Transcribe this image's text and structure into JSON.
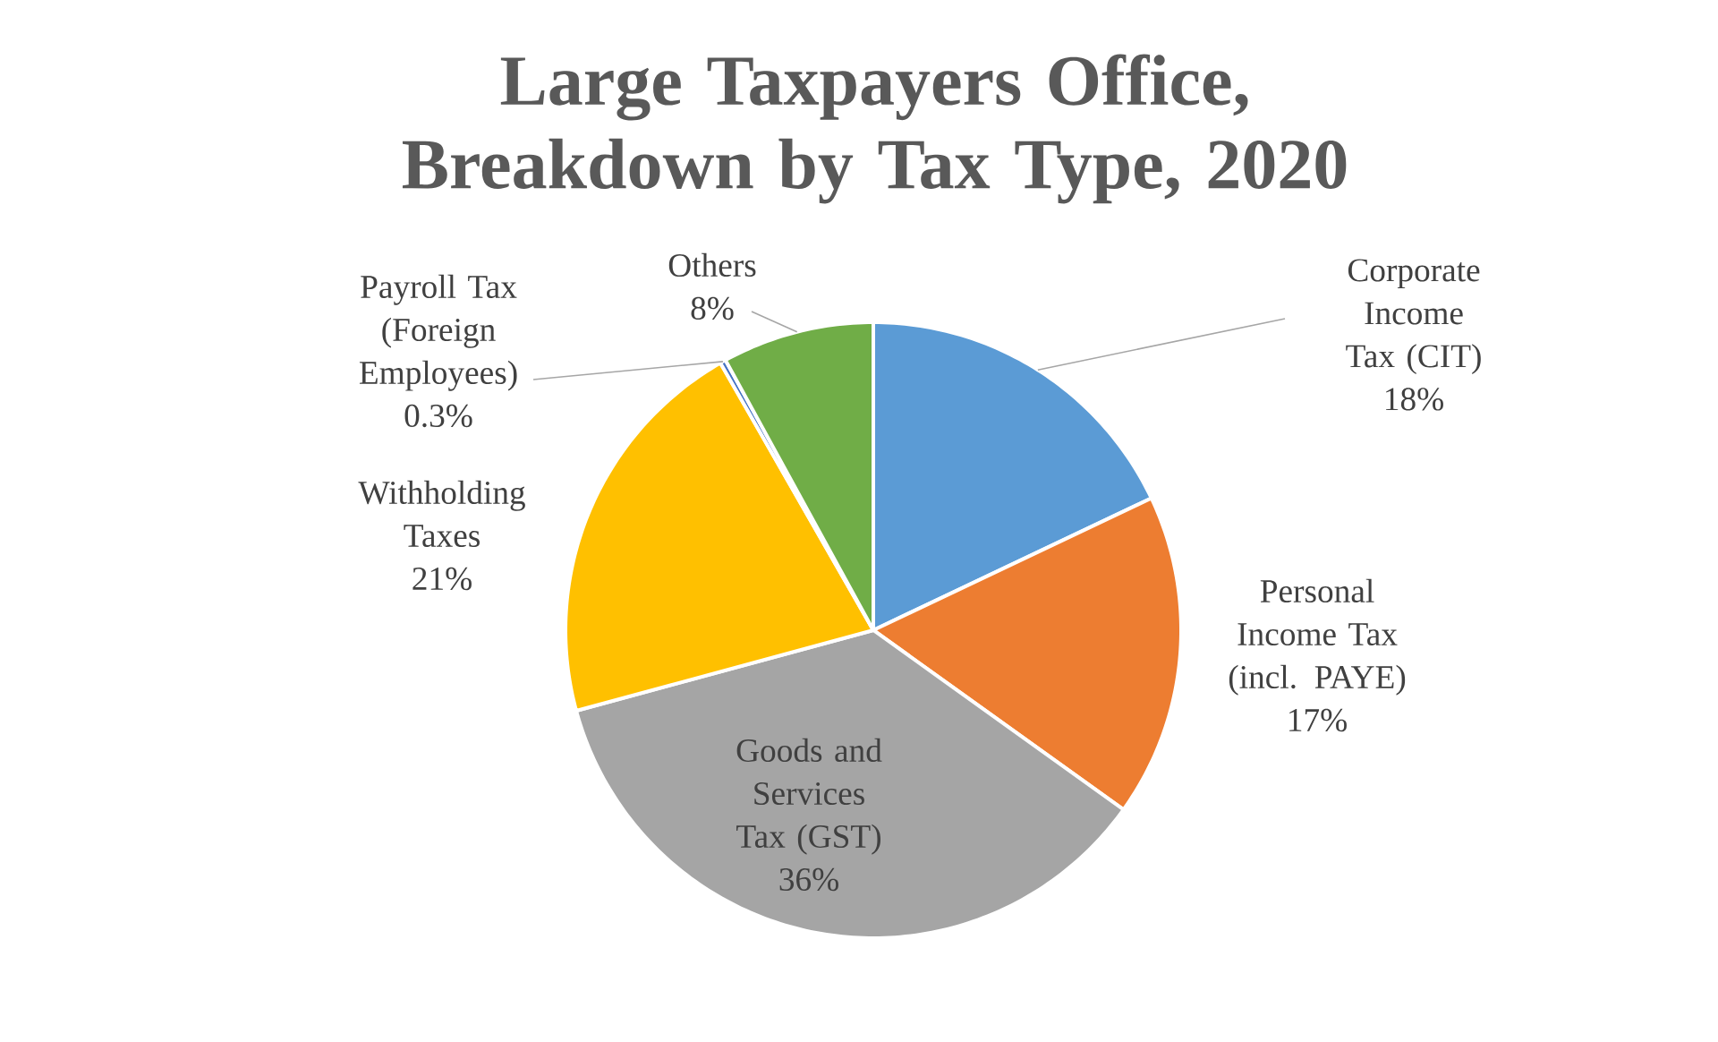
{
  "chart_data": {
    "type": "pie",
    "title": "Large Taxpayers Office, Breakdown by Tax Type, 2020",
    "categories": [
      "Corporate Income Tax (CIT)",
      "Personal Income Tax (incl. PAYE)",
      "Goods and Services Tax (GST)",
      "Withholding Taxes",
      "Payroll Tax (Foreign Employees)",
      "Others"
    ],
    "values": [
      18,
      17,
      36,
      21,
      0.3,
      8
    ],
    "value_labels": [
      "18%",
      "17%",
      "36%",
      "21%",
      "0.3%",
      "8%"
    ],
    "colors": [
      "#5b9bd5",
      "#ed7d31",
      "#a5a5a5",
      "#ffc000",
      "#4472c4",
      "#70ad47"
    ]
  }
}
